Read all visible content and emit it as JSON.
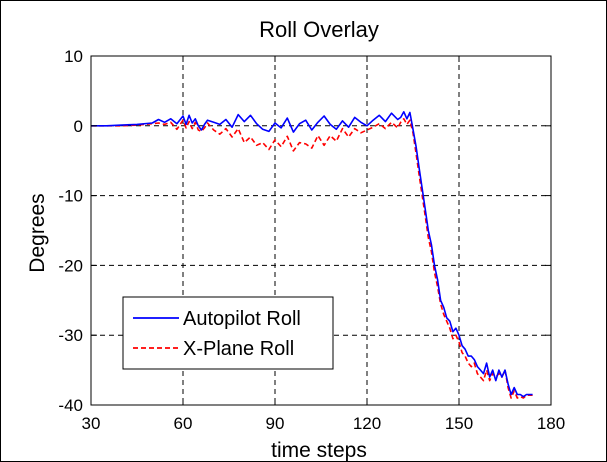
{
  "chart_data": {
    "type": "line",
    "title": "Roll Overlay",
    "xlabel": "time steps",
    "ylabel": "Degrees",
    "xlim": [
      30,
      180
    ],
    "ylim": [
      -40,
      10
    ],
    "xticks": [
      30,
      60,
      90,
      120,
      150,
      180
    ],
    "yticks": [
      10,
      0,
      -10,
      -20,
      -30,
      -40
    ],
    "grid": true,
    "legend_position": "lower-left",
    "series": [
      {
        "name": "Autopilot Roll",
        "color": "#0000ff",
        "style": "solid",
        "x": [
          30,
          35,
          40,
          45,
          50,
          52,
          54,
          56,
          58,
          60,
          61,
          62,
          63,
          64,
          65,
          66,
          67,
          68,
          70,
          72,
          74,
          76,
          78,
          80,
          82,
          84,
          86,
          88,
          90,
          92,
          94,
          96,
          98,
          100,
          102,
          104,
          106,
          108,
          110,
          112,
          114,
          116,
          118,
          120,
          122,
          124,
          126,
          128,
          130,
          131,
          132,
          133,
          134,
          135,
          136,
          137,
          138,
          139,
          140,
          141,
          142,
          143,
          144,
          145,
          146,
          147,
          148,
          149,
          150,
          151,
          152,
          153,
          154,
          155,
          156,
          157,
          158,
          159,
          160,
          161,
          162,
          163,
          164,
          165,
          166,
          167,
          168,
          169,
          170,
          171,
          172,
          174
        ],
        "y": [
          0,
          0,
          0.1,
          0.2,
          0.4,
          0.9,
          0.5,
          1.0,
          0.3,
          1.4,
          0.2,
          1.5,
          0.4,
          1.0,
          0.0,
          -0.6,
          0.2,
          0.8,
          0.5,
          0.2,
          0.9,
          -0.2,
          1.6,
          0.6,
          1.5,
          0.3,
          -0.5,
          -0.8,
          0.4,
          -0.3,
          1.1,
          -0.9,
          0.3,
          0.8,
          -0.6,
          0.5,
          1.4,
          0.2,
          -0.5,
          0.7,
          -0.2,
          1.2,
          0.5,
          0.0,
          0.8,
          1.5,
          0.6,
          1.8,
          0.9,
          1.2,
          2.0,
          1.0,
          1.9,
          -0.5,
          -3.0,
          -6.0,
          -9.0,
          -12.0,
          -15.0,
          -17.0,
          -20.0,
          -22.0,
          -25.0,
          -26.0,
          -27.5,
          -28.0,
          -29.5,
          -29.0,
          -30.0,
          -31.5,
          -32.0,
          -33.0,
          -33.0,
          -33.5,
          -34.5,
          -35.0,
          -35.5,
          -34.0,
          -36.0,
          -35.0,
          -36.5,
          -35.0,
          -36.0,
          -35.0,
          -37.0,
          -38.5,
          -37.5,
          -38.5,
          -38.5,
          -38.8,
          -38.5,
          -38.5
        ]
      },
      {
        "name": "X-Plane Roll",
        "color": "#ff0000",
        "style": "dashed",
        "x": [
          30,
          35,
          40,
          45,
          50,
          52,
          54,
          56,
          58,
          60,
          61,
          62,
          63,
          64,
          65,
          66,
          67,
          68,
          70,
          72,
          74,
          76,
          78,
          80,
          82,
          84,
          86,
          88,
          90,
          92,
          94,
          96,
          98,
          100,
          102,
          104,
          106,
          108,
          110,
          112,
          114,
          116,
          118,
          120,
          122,
          124,
          126,
          128,
          130,
          131,
          132,
          133,
          134,
          135,
          136,
          137,
          138,
          139,
          140,
          141,
          142,
          143,
          144,
          145,
          146,
          147,
          148,
          149,
          150,
          151,
          152,
          153,
          154,
          155,
          156,
          157,
          158,
          159,
          160,
          161,
          162,
          163,
          164,
          165,
          166,
          167,
          168,
          169,
          170,
          171,
          172,
          174
        ],
        "y": [
          0,
          0,
          0,
          0.1,
          0.3,
          0.4,
          0.2,
          0.5,
          -0.5,
          0.8,
          -0.3,
          0.6,
          -0.4,
          0.5,
          -0.6,
          -0.8,
          -0.3,
          0.4,
          -0.6,
          -1.2,
          -0.4,
          -1.6,
          -0.4,
          -2.4,
          -1.6,
          -2.8,
          -2.4,
          -3.4,
          -2.0,
          -3.0,
          -1.5,
          -3.6,
          -2.4,
          -2.6,
          -3.2,
          -1.4,
          -2.8,
          -1.4,
          -2.2,
          -0.4,
          -1.6,
          -0.4,
          -1.0,
          -0.6,
          -0.2,
          0.3,
          -0.4,
          0.5,
          -0.3,
          0.5,
          1.0,
          0.2,
          0.8,
          -1.0,
          -4.0,
          -7.0,
          -10.0,
          -13.0,
          -16.0,
          -18.0,
          -21.0,
          -23.0,
          -25.5,
          -27.0,
          -28.0,
          -29.0,
          -30.5,
          -30.0,
          -31.0,
          -32.5,
          -33.0,
          -34.0,
          -34.5,
          -34.0,
          -35.5,
          -36.0,
          -36.5,
          -35.0,
          -36.5,
          -35.5,
          -36.0,
          -35.5,
          -36.0,
          -35.0,
          -37.5,
          -39.0,
          -38.0,
          -39.0,
          -38.8,
          -39.0,
          -38.6,
          -38.6
        ]
      }
    ]
  }
}
